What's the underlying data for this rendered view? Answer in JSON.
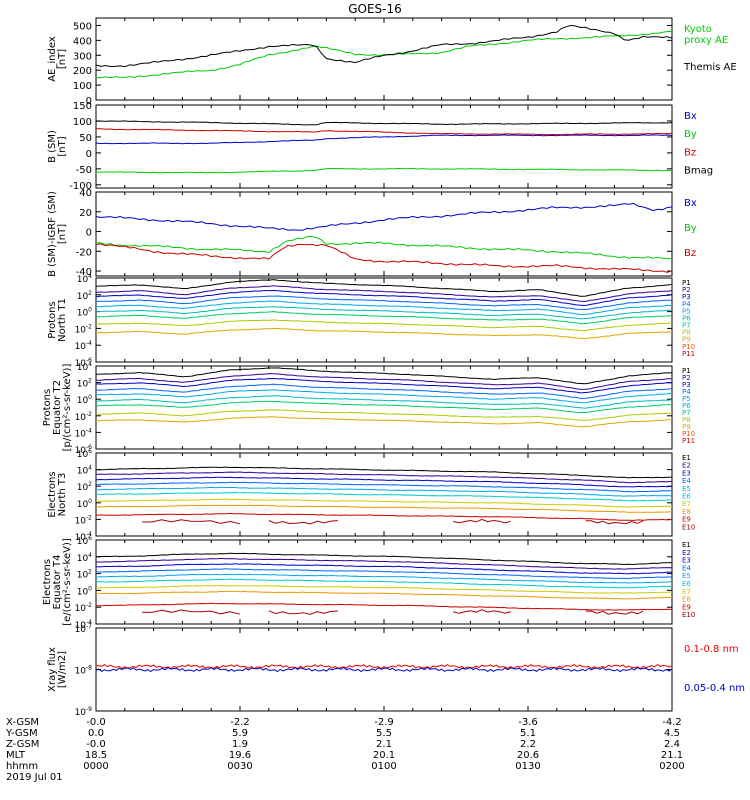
{
  "title": "GOES-16",
  "chart_data": [
    {
      "id": "ae",
      "type": "line",
      "ylabel": [
        "AE_index",
        "[nT]"
      ],
      "ylim": [
        0,
        550
      ],
      "ticks": [
        0,
        100,
        200,
        300,
        400,
        500
      ],
      "tick_labels": [
        "0",
        "100",
        "200",
        "300",
        "400",
        "500"
      ],
      "series": [
        {
          "name": "Kyoto\nproxy AE",
          "color": "#00cc00",
          "x": [
            0.05,
            0.1,
            0.2,
            0.25,
            0.3,
            0.35,
            0.38,
            0.45,
            0.5,
            0.6,
            0.65,
            0.75,
            0.85,
            0.92,
            0.97,
            1.0
          ],
          "values": [
            150,
            170,
            200,
            240,
            300,
            340,
            360,
            310,
            300,
            320,
            360,
            400,
            420,
            430,
            450,
            460
          ],
          "label_color": "#00cc00"
        },
        {
          "name": "Themis AE",
          "color": "#000000",
          "x": [
            0.0,
            0.05,
            0.1,
            0.2,
            0.25,
            0.3,
            0.38,
            0.4,
            0.45,
            0.5,
            0.55,
            0.6,
            0.65,
            0.7,
            0.75,
            0.8,
            0.82,
            0.85,
            0.9,
            0.92,
            0.95,
            1.0
          ],
          "values": [
            230,
            230,
            250,
            300,
            330,
            360,
            370,
            280,
            250,
            300,
            330,
            370,
            380,
            400,
            420,
            460,
            500,
            480,
            450,
            400,
            420,
            420
          ],
          "label_color": "#000000"
        }
      ]
    },
    {
      "id": "bsm",
      "type": "line",
      "ylabel": [
        "B (SM)",
        "[nT]"
      ],
      "ylim": [
        -110,
        150
      ],
      "ticks": [
        -100,
        -50,
        0,
        50,
        100,
        150
      ],
      "tick_labels": [
        "-100",
        "-50",
        "0",
        "50",
        "100",
        "150"
      ],
      "series": [
        {
          "name": "Bx",
          "color": "#0000cc",
          "x": [
            0,
            0.2,
            0.38,
            0.4,
            0.6,
            0.8,
            1.0
          ],
          "values": [
            30,
            30,
            40,
            45,
            55,
            55,
            55
          ],
          "label_color": "#0000cc"
        },
        {
          "name": "By",
          "color": "#00cc00",
          "x": [
            0,
            0.2,
            0.38,
            0.4,
            0.6,
            0.8,
            1.0
          ],
          "values": [
            -60,
            -62,
            -55,
            -50,
            -50,
            -52,
            -55
          ],
          "label_color": "#00cc00"
        },
        {
          "name": "Bz",
          "color": "#cc0000",
          "x": [
            0,
            0.2,
            0.38,
            0.4,
            0.6,
            0.8,
            1.0
          ],
          "values": [
            75,
            70,
            65,
            70,
            60,
            58,
            60
          ],
          "label_color": "#cc0000"
        },
        {
          "name": "Bmag",
          "color": "#000000",
          "x": [
            0,
            0.2,
            0.38,
            0.4,
            0.6,
            0.8,
            1.0
          ],
          "values": [
            100,
            95,
            88,
            95,
            90,
            92,
            95
          ],
          "label_color": "#000000"
        }
      ]
    },
    {
      "id": "bsmigrf",
      "type": "line",
      "ylabel": [
        "B (SM)-IGRF (SM)",
        "[nT]"
      ],
      "ylim": [
        -45,
        40
      ],
      "ticks": [
        -40,
        -20,
        0,
        20,
        40
      ],
      "tick_labels": [
        "-40",
        "-20",
        "0",
        "20",
        "40"
      ],
      "series": [
        {
          "name": "Bx",
          "color": "#0000cc",
          "x": [
            0,
            0.1,
            0.2,
            0.3,
            0.35,
            0.4,
            0.5,
            0.6,
            0.7,
            0.8,
            0.9,
            0.93,
            0.97,
            1.0
          ],
          "values": [
            15,
            12,
            8,
            3,
            2,
            5,
            12,
            16,
            20,
            24,
            26,
            28,
            22,
            25
          ],
          "label_color": "#0000cc"
        },
        {
          "name": "By",
          "color": "#00cc00",
          "x": [
            0,
            0.1,
            0.2,
            0.3,
            0.33,
            0.38,
            0.4,
            0.5,
            0.6,
            0.7,
            0.8,
            0.9,
            1.0
          ],
          "values": [
            -12,
            -15,
            -18,
            -20,
            -10,
            -5,
            -12,
            -12,
            -15,
            -18,
            -20,
            -25,
            -28
          ],
          "label_color": "#00cc00"
        },
        {
          "name": "Bz",
          "color": "#cc0000",
          "x": [
            0,
            0.1,
            0.2,
            0.3,
            0.33,
            0.36,
            0.4,
            0.45,
            0.5,
            0.6,
            0.7,
            0.8,
            0.9,
            1.0
          ],
          "values": [
            -12,
            -20,
            -25,
            -28,
            -15,
            -12,
            -14,
            -28,
            -30,
            -32,
            -35,
            -35,
            -38,
            -40
          ],
          "label_color": "#cc0000"
        }
      ]
    },
    {
      "id": "protons_t1",
      "type": "line",
      "scale": "log",
      "ylabel": [
        "Protons",
        "North T1"
      ],
      "ylim_exp": [
        -6,
        4
      ],
      "tick_exps": [
        4,
        2,
        0,
        -2,
        -4,
        -6
      ],
      "base": 10,
      "labels": [
        "P1",
        "P2",
        "P3",
        "P4",
        "P5",
        "P6",
        "P7",
        "P8",
        "P9",
        "P10",
        "P11"
      ],
      "label_colors": [
        "#000000",
        "#330099",
        "#0000cc",
        "#0066ff",
        "#00aaee",
        "#00bbbb",
        "#00cc66",
        "#aacc00",
        "#ddaa00",
        "#ee5500",
        "#cc0000"
      ],
      "base_exps": [
        3.0,
        2.3,
        1.8,
        1.2,
        0.6,
        0.0,
        -0.6,
        -1.5,
        -2.5
      ],
      "profile": [
        0,
        0.2,
        -0.3,
        0.5,
        0.8,
        0.4,
        0.2,
        0.0,
        -0.3,
        -0.6,
        -0.4,
        -1.2,
        -0.2,
        0.2
      ]
    },
    {
      "id": "protons_t2",
      "type": "line",
      "scale": "log",
      "ylabel": [
        "Protons",
        "Equator T2",
        "[p/(cm²-s-sr-keV)]"
      ],
      "ylim_exp": [
        -6,
        4
      ],
      "tick_exps": [
        4,
        2,
        0,
        -2,
        -4,
        -6
      ],
      "base": 10,
      "labels": [
        "P1",
        "P2",
        "P3",
        "P4",
        "P5",
        "P6",
        "P7",
        "P8",
        "P9",
        "P10",
        "P11"
      ],
      "label_colors": [
        "#000000",
        "#330099",
        "#0000cc",
        "#0066ff",
        "#00aaee",
        "#00bbbb",
        "#00cc66",
        "#aacc00",
        "#ddaa00",
        "#ee5500",
        "#cc0000"
      ],
      "base_exps": [
        3.0,
        2.3,
        1.8,
        1.1,
        0.5,
        -0.2,
        -0.8,
        -1.8,
        -2.6
      ],
      "profile": [
        0,
        0.2,
        -0.3,
        0.5,
        0.8,
        0.4,
        0.2,
        0.0,
        -0.3,
        -0.6,
        -0.4,
        -1.2,
        -0.2,
        0.2
      ]
    },
    {
      "id": "electrons_t3",
      "type": "line",
      "scale": "log",
      "ylabel": [
        "Electrons",
        "North T3"
      ],
      "ylim_exp": [
        -4,
        6
      ],
      "tick_exps": [
        6,
        4,
        2,
        0,
        -2,
        -4
      ],
      "base": 10,
      "labels": [
        "E1",
        "E2",
        "E3",
        "E4",
        "E5",
        "E6",
        "E7",
        "E8",
        "E9",
        "E10"
      ],
      "label_colors": [
        "#000000",
        "#330099",
        "#0000cc",
        "#0066ff",
        "#00aaee",
        "#00cccc",
        "#cccc00",
        "#ee9900",
        "#cc0000",
        "#990000"
      ],
      "base_exps": [
        4.0,
        3.4,
        2.8,
        2.2,
        1.6,
        1.0,
        0.2,
        -0.5,
        -1.5
      ],
      "profile": [
        0,
        0.1,
        0.2,
        0.3,
        0.2,
        0.1,
        0.0,
        -0.1,
        -0.2,
        -0.3,
        -0.5,
        -0.7,
        -1.0,
        -0.9
      ]
    },
    {
      "id": "electrons_t4",
      "type": "line",
      "scale": "log",
      "ylabel": [
        "Electrons",
        "Equator T4",
        "[e/(cm²-s-sr-keV)]"
      ],
      "ylim_exp": [
        -4,
        6
      ],
      "tick_exps": [
        6,
        4,
        2,
        0,
        -2,
        -4
      ],
      "base": 10,
      "labels": [
        "E1",
        "E2",
        "E3",
        "E4",
        "E5",
        "E6",
        "E7",
        "E8",
        "E9",
        "E10"
      ],
      "label_colors": [
        "#000000",
        "#330099",
        "#0000cc",
        "#0066ff",
        "#00aaee",
        "#00cccc",
        "#cccc00",
        "#ee9900",
        "#cc0000",
        "#990000"
      ],
      "base_exps": [
        4.0,
        3.4,
        2.8,
        2.2,
        1.6,
        1.0,
        0.3,
        -0.4,
        -1.8
      ],
      "profile": [
        0,
        0.1,
        0.3,
        0.4,
        0.3,
        0.2,
        0.1,
        0.0,
        -0.2,
        -0.4,
        -0.6,
        -0.8,
        -0.9,
        -0.7
      ]
    },
    {
      "id": "xray",
      "type": "line",
      "scale": "log",
      "ylabel": [
        "Xray flux",
        "[W/m2]"
      ],
      "ylim_exp": [
        -9,
        -7
      ],
      "tick_exps": [
        -7,
        -8,
        -9
      ],
      "base": 10,
      "series": [
        {
          "name": "0.1-0.8 nm",
          "color": "#ee0000",
          "level_exp": -7.93,
          "label_color": "#ee0000"
        },
        {
          "name": "0.05-0.4 nm",
          "color": "#0000cc",
          "level_exp": -8.0,
          "label_color": "#0000cc"
        }
      ]
    }
  ],
  "x_axis": {
    "rows": [
      {
        "name": "X-GSM",
        "values": [
          "-0.0",
          "-2.2",
          "-2.9",
          "-3.6",
          "-4.2"
        ]
      },
      {
        "name": "Y-GSM",
        "values": [
          "0.0",
          "5.9",
          "5.5",
          "5.1",
          "4.5"
        ]
      },
      {
        "name": "Z-GSM",
        "values": [
          "-0.0",
          "1.9",
          "2.1",
          "2.2",
          "2.4"
        ]
      },
      {
        "name": "MLT",
        "values": [
          "18.5",
          "19.6",
          "20.1",
          "20.6",
          "21.1"
        ]
      },
      {
        "name": "hhmm",
        "values": [
          "0000",
          "0030",
          "0100",
          "0130",
          "0200"
        ]
      }
    ],
    "date": "2019 Jul 01"
  }
}
